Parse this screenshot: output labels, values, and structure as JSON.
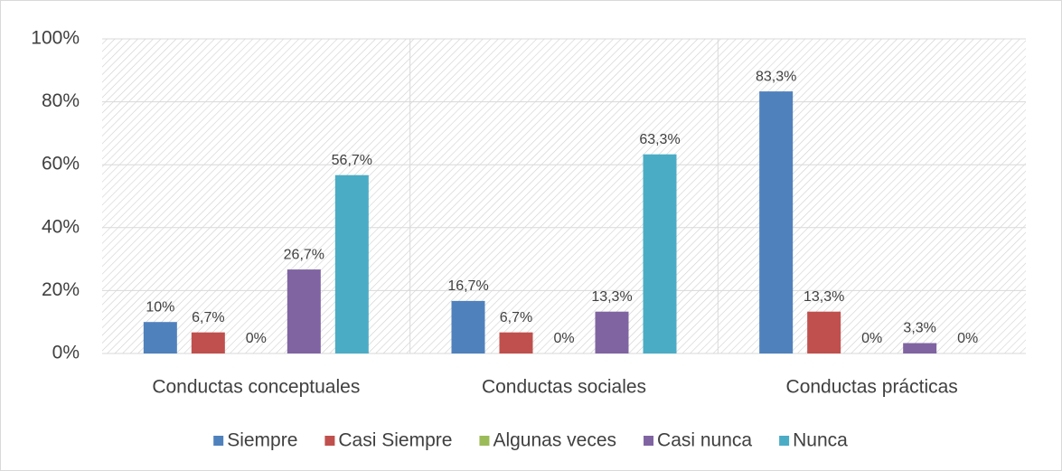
{
  "chart_data": {
    "type": "bar",
    "categories": [
      "Conductas conceptuales",
      "Conductas sociales",
      "Conductas prácticas"
    ],
    "series": [
      {
        "name": "Siempre",
        "color": "#4f81bd",
        "values": [
          10,
          16.7,
          83.3
        ],
        "value_labels": [
          "10%",
          "16,7%",
          "83,3%"
        ]
      },
      {
        "name": "Casi Siempre",
        "color": "#c0504d",
        "values": [
          6.7,
          6.7,
          13.3
        ],
        "value_labels": [
          "6,7%",
          "6,7%",
          "13,3%"
        ]
      },
      {
        "name": "Algunas veces",
        "color": "#9bbb59",
        "values": [
          0,
          0,
          0
        ],
        "value_labels": [
          "0%",
          "0%",
          "0%"
        ]
      },
      {
        "name": "Casi nunca",
        "color": "#8064a2",
        "values": [
          26.7,
          13.3,
          3.3
        ],
        "value_labels": [
          "26,7%",
          "13,3%",
          "3,3%"
        ]
      },
      {
        "name": "Nunca",
        "color": "#4bacc6",
        "values": [
          56.7,
          63.3,
          0
        ],
        "value_labels": [
          "56,7%",
          "63,3%",
          "0%"
        ]
      }
    ],
    "ylim": [
      0,
      100
    ],
    "yticks": [
      {
        "value": 0,
        "label": "0%"
      },
      {
        "value": 20,
        "label": "20%"
      },
      {
        "value": 40,
        "label": "40%"
      },
      {
        "value": 60,
        "label": "60%"
      },
      {
        "value": 80,
        "label": "80%"
      },
      {
        "value": 100,
        "label": "100%"
      }
    ],
    "grid": true,
    "legend": "bottom"
  }
}
